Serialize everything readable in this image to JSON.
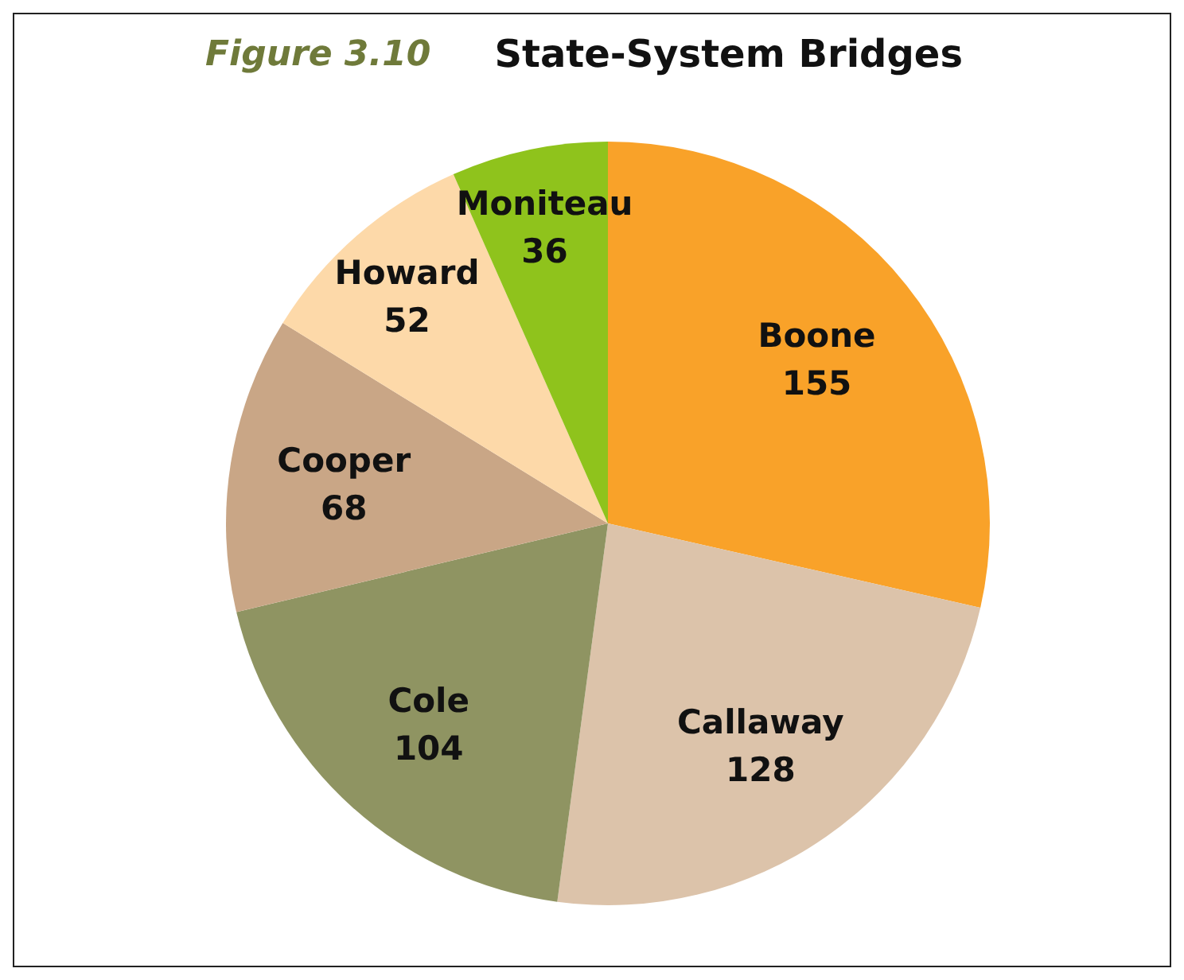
{
  "chart_data": {
    "type": "pie",
    "subtitle": "Figure 3.10",
    "title": "State-System Bridges",
    "categories": [
      "Boone",
      "Callaway",
      "Cole",
      "Cooper",
      "Howard",
      "Moniteau"
    ],
    "values": [
      155,
      128,
      104,
      68,
      52,
      36
    ],
    "colors": [
      "#f9a229",
      "#dcc3aa",
      "#8f9462",
      "#c9a686",
      "#fdd9a9",
      "#8fc31c"
    ],
    "data_labels": true
  }
}
